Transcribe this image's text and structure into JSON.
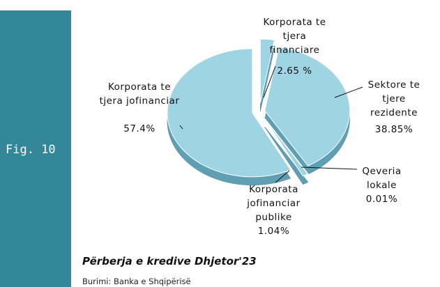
{
  "chart_data": {
    "type": "pie",
    "side_label": "Fig. 10",
    "title": "Përberja e kredive Dhjetor'23",
    "source": "Burimi: Banka e Shqipërisë",
    "categories": [
      "Korporata te tjera financiare",
      "Sektore te tjere rezidente",
      "Qeveria lokale",
      "Korporata jofinanciar publike",
      "Korporata te tjera jofinanciar"
    ],
    "values": [
      2.65,
      38.85,
      0.01,
      1.04,
      57.4
    ],
    "value_labels": [
      "2.65 %",
      "38.85%",
      "0.01%",
      "1.04%",
      "57.4%"
    ],
    "color": "#9fd4e3"
  }
}
